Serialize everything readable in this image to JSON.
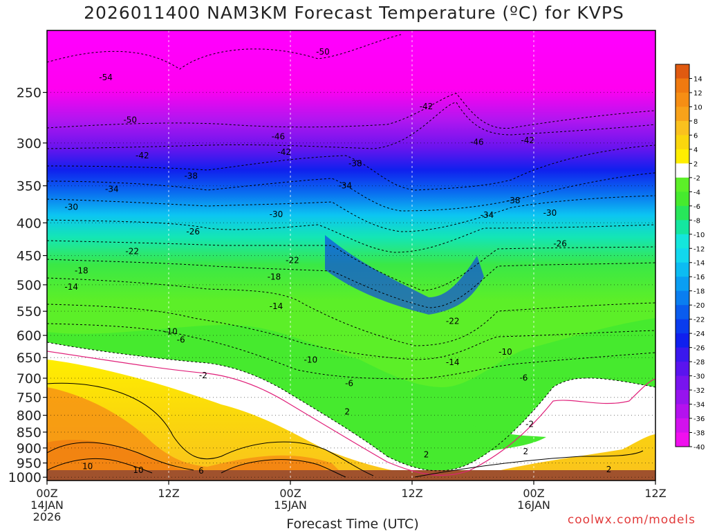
{
  "chart_data": {
    "type": "heatmap",
    "title": "2026011400 NAM3KM Forecast Temperature (ºC) for KVPS",
    "xlabel": "Forecast Time (UTC)",
    "ylabel": "",
    "credit": "coolwx.com/models",
    "x_range_hours": [
      0,
      60
    ],
    "y_range_hpa": [
      1012,
      200
    ],
    "y_ticks": [
      "250",
      "300",
      "350",
      "400",
      "450",
      "500",
      "550",
      "600",
      "650",
      "700",
      "750",
      "800",
      "850",
      "900",
      "950",
      "1000"
    ],
    "x_ticks": [
      {
        "h": 0,
        "l1": "00Z",
        "l2": "14JAN",
        "l3": "2026"
      },
      {
        "h": 12,
        "l1": "12Z",
        "l2": "",
        "l3": ""
      },
      {
        "h": 24,
        "l1": "00Z",
        "l2": "15JAN",
        "l3": ""
      },
      {
        "h": 36,
        "l1": "12Z",
        "l2": "",
        "l3": ""
      },
      {
        "h": 48,
        "l1": "00Z",
        "l2": "16JAN",
        "l3": ""
      },
      {
        "h": 60,
        "l1": "12Z",
        "l2": "",
        "l3": ""
      }
    ],
    "colorbar": {
      "labels": [
        "14",
        "12",
        "10",
        "8",
        "6",
        "4",
        "2",
        "-2",
        "-4",
        "-6",
        "-8",
        "-10",
        "-12",
        "-14",
        "-16",
        "-18",
        "-20",
        "-22",
        "-24",
        "-26",
        "-28",
        "-30",
        "-32",
        "-34",
        "-36",
        "-38",
        "-40"
      ],
      "colors": [
        "#e05a10",
        "#f07a10",
        "#f68e14",
        "#f8a21a",
        "#fac11e",
        "#fad60d",
        "#ffee00",
        "#ffffff",
        "#5cef28",
        "#46ea2e",
        "#28e65a",
        "#14e6a0",
        "#14e6dc",
        "#12d8ee",
        "#0cbcf2",
        "#0a9ef2",
        "#0a7ef0",
        "#0a5cee",
        "#0a3cee",
        "#1020ee",
        "#3a18ee",
        "#5a14ee",
        "#7814ee",
        "#9614ee",
        "#b412ee",
        "#d212ee",
        "#f010ee"
      ]
    },
    "series": [
      {
        "name": "-50 contour",
        "values": [
          -50,
          -50,
          -50,
          -50,
          -50,
          -50,
          -50,
          -50
        ]
      },
      {
        "name": "-42 contour",
        "values": [
          -42,
          -42,
          -42,
          -42,
          -42,
          -42,
          -42,
          -42
        ]
      },
      {
        "name": "-30 contour",
        "values": [
          -30,
          -30,
          -30,
          -30,
          -30,
          -30,
          -30,
          -30
        ]
      },
      {
        "name": "-22 contour",
        "values": [
          -22,
          -22,
          -22,
          -22,
          -22,
          -22,
          -22,
          -22
        ]
      },
      {
        "name": "-14 contour",
        "values": [
          -14,
          -14,
          -14,
          -14,
          -14,
          -14,
          -14,
          -14
        ]
      },
      {
        "name": "-6 contour",
        "values": [
          -6,
          -6,
          -6,
          -6,
          -6,
          -6,
          -6,
          -6
        ]
      },
      {
        "name": "2 contour",
        "values": [
          2,
          2,
          2,
          2,
          2,
          2,
          2,
          2
        ]
      }
    ],
    "contour_labels": [
      {
        "t": "-54",
        "h": 5.8,
        "p": 237
      },
      {
        "t": "-50",
        "h": 8.2,
        "p": 276
      },
      {
        "t": "-50",
        "h": 27.2,
        "p": 216
      },
      {
        "t": "-46",
        "h": 22.8,
        "p": 293
      },
      {
        "t": "-46",
        "h": 42.4,
        "p": 299
      },
      {
        "t": "-42",
        "h": 9.4,
        "p": 314
      },
      {
        "t": "-42",
        "h": 23.4,
        "p": 310
      },
      {
        "t": "-42",
        "h": 37.4,
        "p": 263
      },
      {
        "t": "-42",
        "h": 47.4,
        "p": 297
      },
      {
        "t": "-38",
        "h": 14.2,
        "p": 338
      },
      {
        "t": "-38",
        "h": 30.4,
        "p": 323
      },
      {
        "t": "-38",
        "h": 46.0,
        "p": 369
      },
      {
        "t": "-34",
        "h": 6.4,
        "p": 354
      },
      {
        "t": "-34",
        "h": 29.4,
        "p": 350
      },
      {
        "t": "-34",
        "h": 43.4,
        "p": 389
      },
      {
        "t": "-30",
        "h": 2.4,
        "p": 378
      },
      {
        "t": "-30",
        "h": 22.6,
        "p": 388
      },
      {
        "t": "-30",
        "h": 49.6,
        "p": 386
      },
      {
        "t": "-26",
        "h": 14.4,
        "p": 413
      },
      {
        "t": "-26",
        "h": 50.6,
        "p": 431
      },
      {
        "t": "-22",
        "h": 8.4,
        "p": 443
      },
      {
        "t": "-22",
        "h": 24.2,
        "p": 458
      },
      {
        "t": "-22",
        "h": 40.0,
        "p": 570
      },
      {
        "t": "-18",
        "h": 3.4,
        "p": 475
      },
      {
        "t": "-18",
        "h": 22.4,
        "p": 486
      },
      {
        "t": "-14",
        "h": 2.4,
        "p": 504
      },
      {
        "t": "-14",
        "h": 22.6,
        "p": 540
      },
      {
        "t": "-14",
        "h": 40.0,
        "p": 661
      },
      {
        "t": "-10",
        "h": 12.2,
        "p": 592
      },
      {
        "t": "-10",
        "h": 26.0,
        "p": 655
      },
      {
        "t": "-10",
        "h": 45.2,
        "p": 637
      },
      {
        "t": "-6",
        "h": 13.2,
        "p": 610
      },
      {
        "t": "-6",
        "h": 29.8,
        "p": 713
      },
      {
        "t": "-6",
        "h": 47.0,
        "p": 699
      },
      {
        "t": "-2",
        "h": 15.4,
        "p": 693
      },
      {
        "t": "-2",
        "h": 47.6,
        "p": 826
      },
      {
        "t": "2",
        "h": 29.6,
        "p": 790
      },
      {
        "t": "2",
        "h": 37.4,
        "p": 922
      },
      {
        "t": "2",
        "h": 47.2,
        "p": 912
      },
      {
        "t": "2",
        "h": 55.4,
        "p": 973
      },
      {
        "t": "6",
        "h": 15.2,
        "p": 977
      },
      {
        "t": "10",
        "h": 4.0,
        "p": 962
      },
      {
        "t": "10",
        "h": 9.0,
        "p": 975
      }
    ]
  }
}
